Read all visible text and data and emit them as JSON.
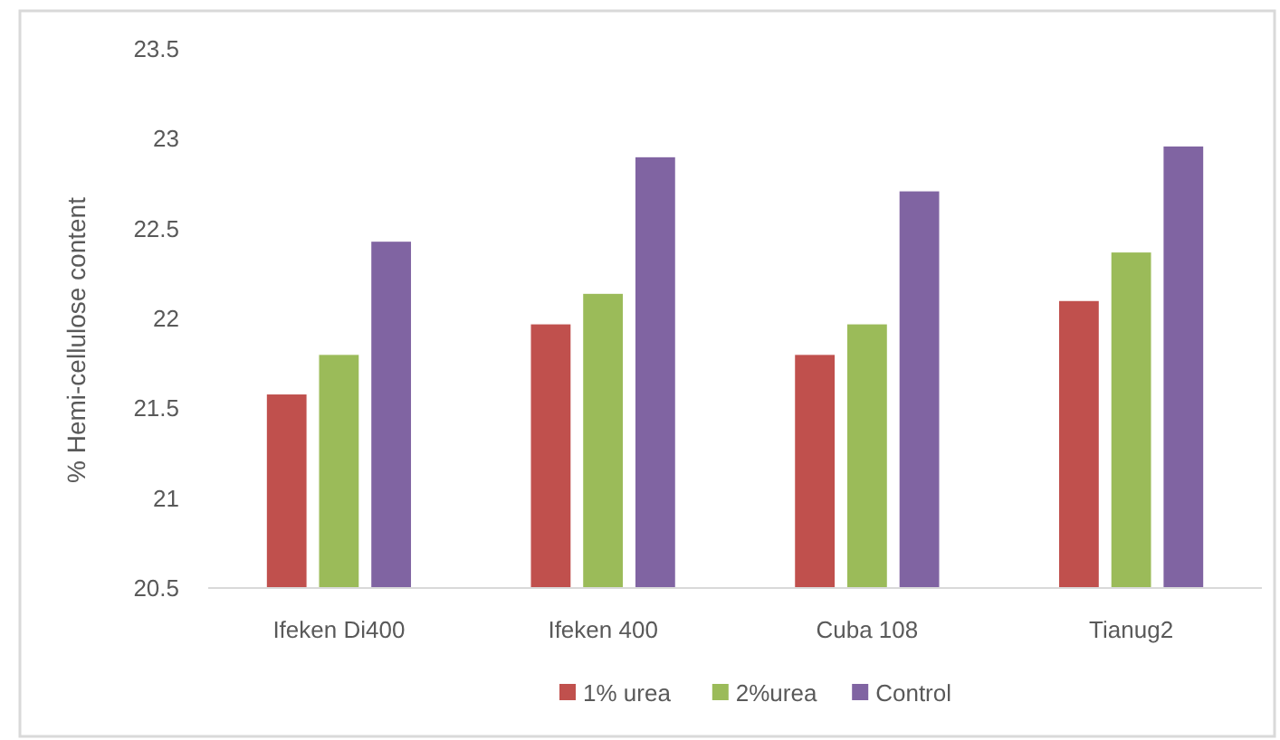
{
  "chart_data": {
    "type": "bar",
    "ylabel": "% Hemi-cellulose content",
    "categories": [
      "Ifeken Di400",
      "Ifeken 400",
      "Cuba 108",
      "Tianug2"
    ],
    "series": [
      {
        "name": "1% urea",
        "color": "#c0504d",
        "values": [
          21.58,
          21.97,
          21.8,
          22.1
        ]
      },
      {
        "name": "2%urea",
        "color": "#9bbb59",
        "values": [
          21.8,
          22.14,
          21.97,
          22.37
        ]
      },
      {
        "name": "Control",
        "color": "#8064a2",
        "values": [
          22.43,
          22.9,
          22.71,
          22.96
        ]
      }
    ],
    "ylim": [
      20.5,
      23.5
    ],
    "yticks": [
      20.5,
      21,
      21.5,
      22,
      22.5,
      23,
      23.5
    ],
    "grid": false,
    "legend": "bottom"
  }
}
